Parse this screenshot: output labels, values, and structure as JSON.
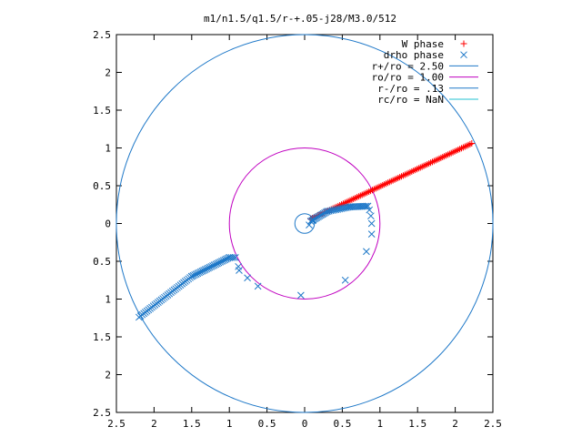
{
  "chart_data": {
    "type": "scatter",
    "title": "m1/n1.5/q1.5/r-+.05-j28/M3.0/512",
    "xlabel": "",
    "ylabel": "",
    "xlim": [
      -2.5,
      2.5
    ],
    "ylim": [
      -2.5,
      2.5
    ],
    "x_ticks": [
      -2.5,
      -2,
      -1.5,
      -1,
      -0.5,
      0,
      0.5,
      1,
      1.5,
      2,
      2.5
    ],
    "y_ticks": [
      -2.5,
      -2,
      -1.5,
      -1,
      -0.5,
      0,
      0.5,
      1,
      1.5,
      2,
      2.5
    ],
    "x_tick_labels": [
      "2.5",
      "2",
      "1.5",
      "1",
      "0.5",
      "0",
      "0.5",
      "1",
      "1.5",
      "2",
      "2.5"
    ],
    "y_tick_labels": [
      "2.5",
      "2",
      "1.5",
      "1",
      "0.5",
      "0",
      "0.5",
      "1",
      "1.5",
      "2",
      "2.5"
    ],
    "grid": false,
    "legend_position": "top-right",
    "series": [
      {
        "name": "W phase",
        "marker": "plus",
        "color": "#ff0000",
        "segments": [
          {
            "from": [
              0.08,
              0.06
            ],
            "to": [
              2.22,
              1.06
            ],
            "count": 95
          }
        ]
      },
      {
        "name": "drho phase",
        "marker": "cross",
        "color": "#1e78c8",
        "segments": [
          {
            "from": [
              0.08,
              0.03
            ],
            "to": [
              0.3,
              0.16
            ],
            "count": 14
          },
          {
            "from": [
              0.3,
              0.16
            ],
            "to": [
              0.6,
              0.22
            ],
            "count": 14
          },
          {
            "from": [
              0.6,
              0.22
            ],
            "to": [
              0.84,
              0.23
            ],
            "count": 12
          },
          {
            "from": [
              -2.2,
              -1.24
            ],
            "to": [
              -1.5,
              -0.7
            ],
            "count": 34
          },
          {
            "from": [
              -1.5,
              -0.7
            ],
            "to": [
              -1.0,
              -0.45
            ],
            "count": 26
          },
          {
            "from": [
              -1.0,
              -0.45
            ],
            "to": [
              -0.92,
              -0.45
            ],
            "count": 4
          }
        ],
        "points": [
          [
            0.06,
            -0.02
          ],
          [
            0.11,
            0.04
          ],
          [
            0.86,
            0.18
          ],
          [
            0.88,
            0.1
          ],
          [
            0.89,
            0.0
          ],
          [
            0.89,
            -0.14
          ],
          [
            0.82,
            -0.37
          ],
          [
            0.54,
            -0.75
          ],
          [
            -0.05,
            -0.95
          ],
          [
            -0.62,
            -0.83
          ],
          [
            -0.76,
            -0.72
          ],
          [
            -0.87,
            -0.62
          ],
          [
            -0.88,
            -0.57
          ]
        ]
      }
    ],
    "circles": [
      {
        "name": "r+/ro = 2.50",
        "radius": 2.5,
        "color": "#1e78c8"
      },
      {
        "name": "ro/ro = 1.00",
        "radius": 1.0,
        "color": "#c000c0"
      },
      {
        "name": "r-/ro = .13",
        "radius": 0.13,
        "color": "#1e78c8"
      },
      {
        "name": "rc/ro = NaN",
        "radius": null,
        "color": "#20c0d0"
      }
    ]
  }
}
